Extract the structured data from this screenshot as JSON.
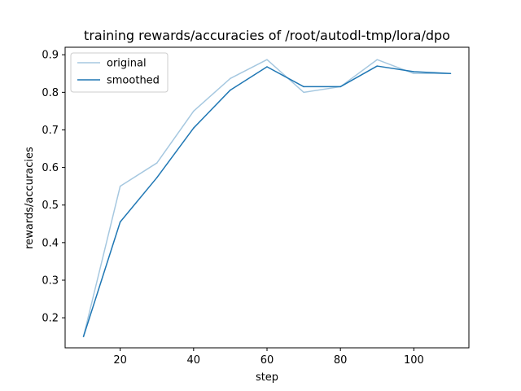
{
  "chart_data": {
    "type": "line",
    "title": "training rewards/accuracies of /root/autodl-tmp/lora/dpo",
    "xlabel": "step",
    "ylabel": "rewards/accuracies",
    "xlim": [
      5,
      115
    ],
    "ylim": [
      0.12,
      0.92
    ],
    "xticks": [
      20,
      40,
      60,
      80,
      100
    ],
    "yticks": [
      0.2,
      0.3,
      0.4,
      0.5,
      0.6,
      0.7,
      0.8,
      0.9
    ],
    "xtick_labels": [
      "20",
      "40",
      "60",
      "80",
      "100"
    ],
    "ytick_labels": [
      "0.2",
      "0.3",
      "0.4",
      "0.5",
      "0.6",
      "0.7",
      "0.8",
      "0.9"
    ],
    "grid": false,
    "legend_position": "top-left",
    "x": [
      10,
      20,
      30,
      40,
      50,
      60,
      70,
      80,
      90,
      100,
      110
    ],
    "series": [
      {
        "name": "original",
        "color": "#a6c8e0",
        "values": [
          0.15,
          0.55,
          0.612,
          0.75,
          0.837,
          0.887,
          0.8,
          0.815,
          0.887,
          0.85,
          0.85
        ]
      },
      {
        "name": "smoothed",
        "color": "#1f77b4",
        "values": [
          0.15,
          0.455,
          0.573,
          0.705,
          0.806,
          0.868,
          0.815,
          0.815,
          0.87,
          0.855,
          0.85
        ]
      }
    ]
  }
}
